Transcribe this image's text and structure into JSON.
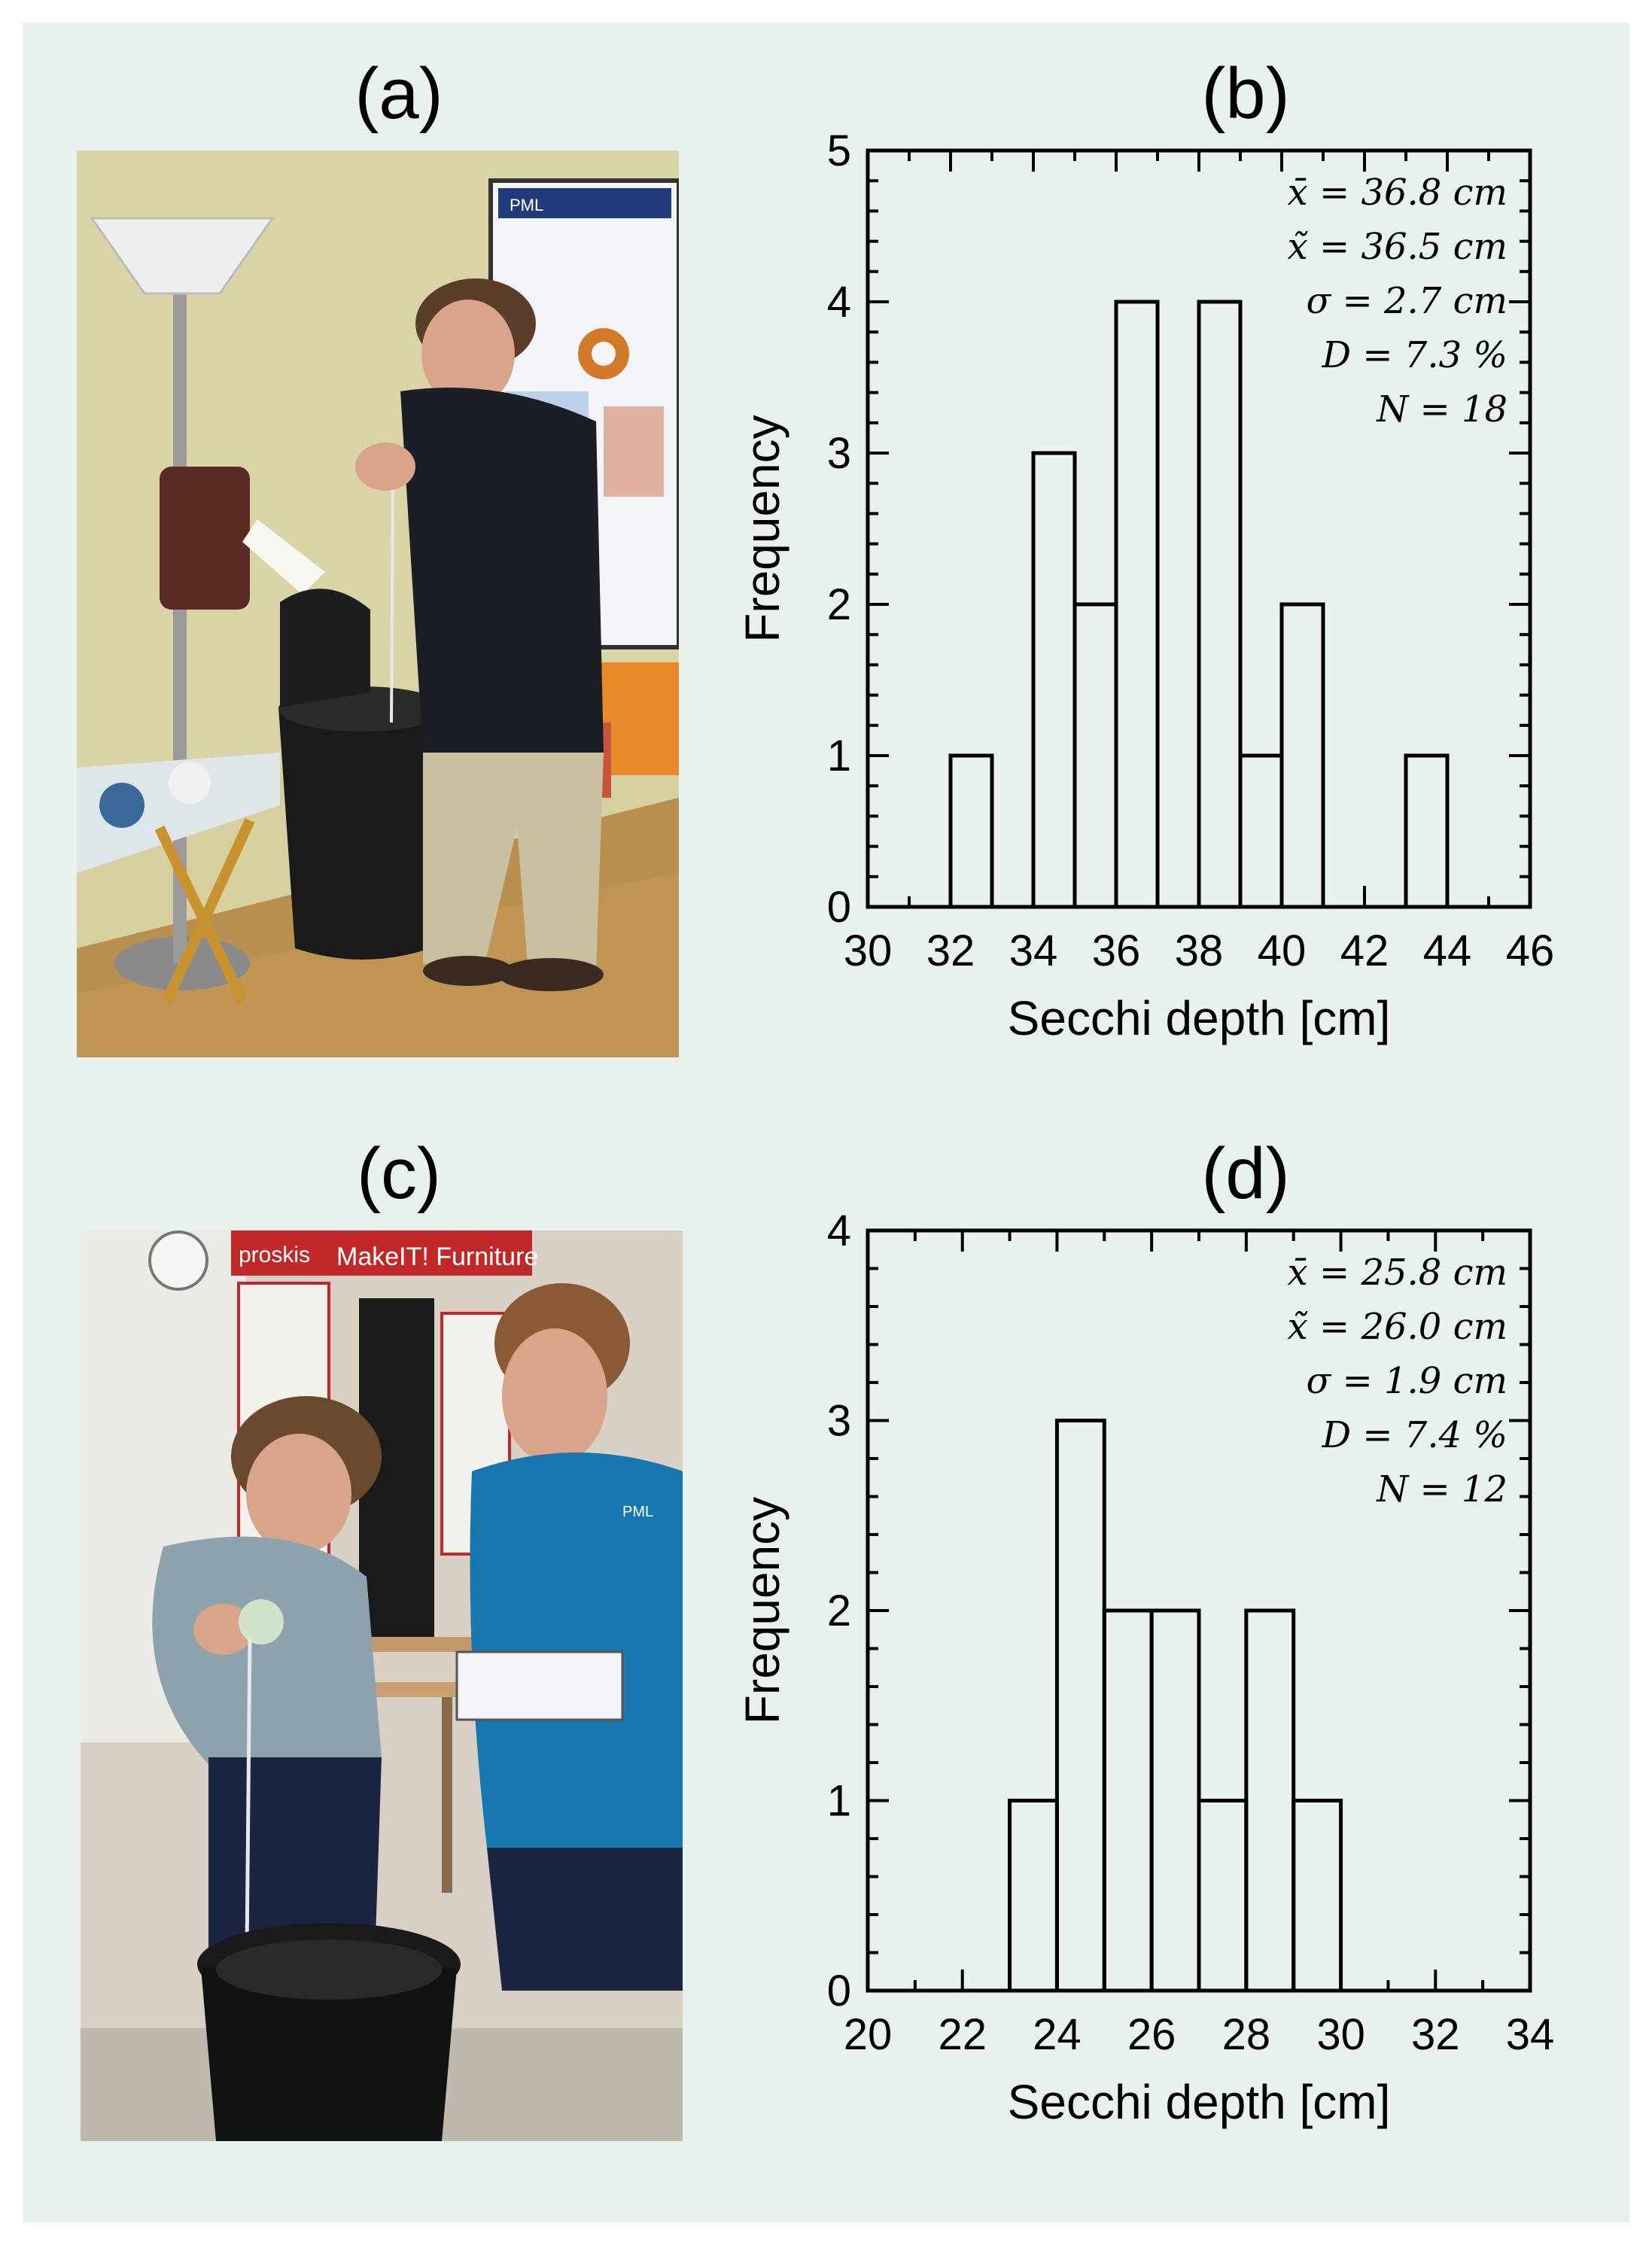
{
  "panels": {
    "a": "(a)",
    "b": "(b)",
    "c": "(c)",
    "d": "(d)"
  },
  "photos": {
    "a": {
      "poster_heading": "PML"
    },
    "c": {
      "banner_text": "MakeIT! Furniture",
      "brand_text": "proskis",
      "shirt_logo": "PML"
    }
  },
  "chart_data": [
    {
      "type": "bar",
      "panel": "b",
      "bin_edges": [
        32,
        33,
        34,
        35,
        36,
        37,
        38,
        39,
        40,
        41,
        42,
        43,
        44
      ],
      "values": [
        1,
        0,
        3,
        2,
        4,
        0,
        4,
        1,
        2,
        0,
        0,
        1
      ],
      "xlabel": "Secchi depth [cm]",
      "ylabel": "Frequency",
      "xlim": [
        30,
        46
      ],
      "ylim": [
        0,
        5
      ],
      "xticks": [
        30,
        32,
        34,
        36,
        38,
        40,
        42,
        44,
        46
      ],
      "yticks": [
        0,
        1,
        2,
        3,
        4,
        5
      ],
      "grid": false,
      "annotations": [
        "x̄ = 36.8 cm",
        "x̃ = 36.5 cm",
        "σ = 2.7 cm",
        "D = 7.3 %",
        "N = 18"
      ]
    },
    {
      "type": "bar",
      "panel": "d",
      "bin_edges": [
        23,
        24,
        25,
        26,
        27,
        28,
        29,
        30
      ],
      "values": [
        1,
        3,
        2,
        2,
        1,
        2,
        1
      ],
      "xlabel": "Secchi depth [cm]",
      "ylabel": "Frequency",
      "xlim": [
        20,
        34
      ],
      "ylim": [
        0,
        4
      ],
      "xticks": [
        20,
        22,
        24,
        26,
        28,
        30,
        32,
        34
      ],
      "yticks": [
        0,
        1,
        2,
        3,
        4
      ],
      "grid": false,
      "annotations": [
        "x̄ = 25.8 cm",
        "x̃ = 26.0 cm",
        "σ = 1.9 cm",
        "D = 7.4 %",
        "N = 12"
      ]
    }
  ]
}
